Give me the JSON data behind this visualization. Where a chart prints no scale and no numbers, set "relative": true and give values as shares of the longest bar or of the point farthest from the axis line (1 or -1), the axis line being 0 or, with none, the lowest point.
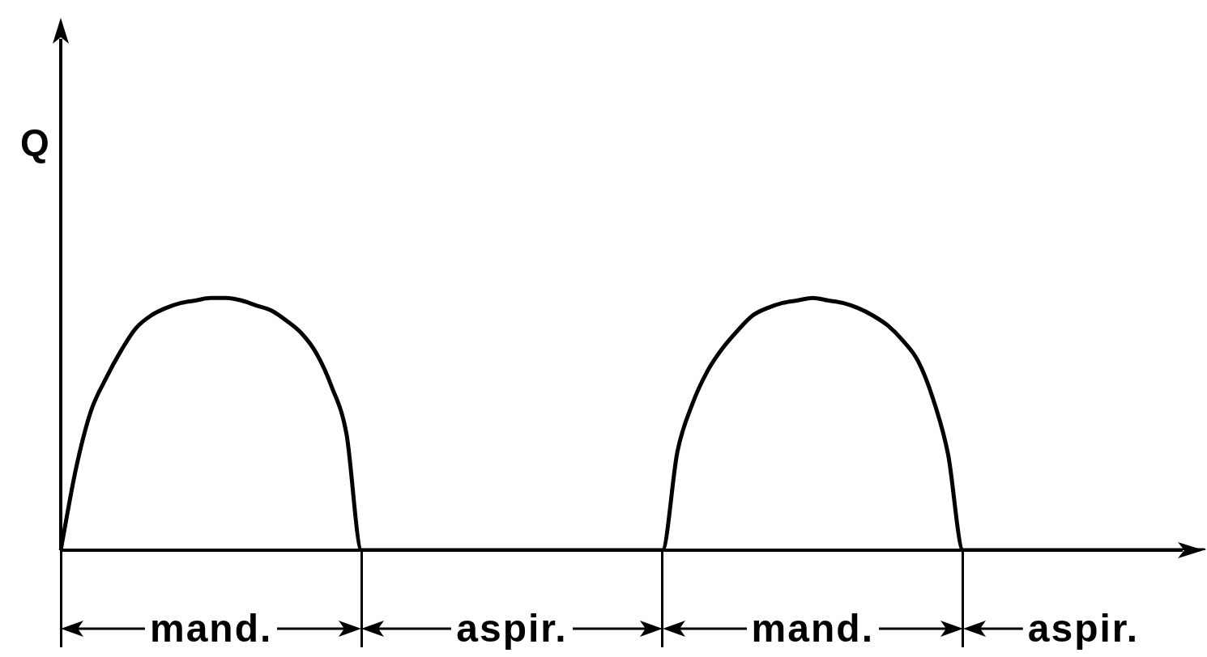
{
  "chart_data": {
    "type": "line",
    "ylabel": "Q",
    "relative": true,
    "marker": "none",
    "line_style": "solid",
    "categories": [
      null,
      null,
      null,
      null,
      null,
      null,
      null,
      null,
      null,
      null,
      null,
      null,
      null,
      null,
      null,
      null,
      null,
      null,
      null,
      null,
      null,
      null,
      null,
      null,
      null,
      null,
      null,
      null,
      null,
      null,
      null,
      null,
      null,
      null,
      null,
      null,
      null,
      null,
      null,
      null,
      null,
      null,
      null,
      null,
      null,
      null,
      null,
      null,
      null,
      null,
      null,
      null,
      null,
      null,
      null,
      null,
      null,
      null,
      null,
      null,
      null,
      null,
      null,
      null,
      null,
      null,
      null,
      null,
      null,
      null,
      null,
      null,
      null,
      null,
      null,
      null,
      null
    ],
    "series": [
      {
        "color": "#000000",
        "values": [
          0,
          0.32,
          0.55,
          0.68,
          0.79,
          0.88,
          0.93,
          0.96,
          0.98,
          0.99,
          1,
          1,
          0.99,
          0.97,
          0.95,
          0.91,
          0.86,
          0.78,
          0.65,
          0.46,
          0,
          0,
          0,
          0,
          0,
          0,
          0,
          0,
          0,
          0,
          0,
          0,
          0,
          0,
          0,
          0,
          0,
          0,
          0,
          0,
          0,
          0.39,
          0.58,
          0.71,
          0.8,
          0.87,
          0.93,
          0.96,
          0.98,
          0.99,
          1,
          0.99,
          0.98,
          0.96,
          0.93,
          0.89,
          0.83,
          0.75,
          0.6,
          0.38,
          0,
          0,
          0,
          0,
          0,
          0,
          0,
          0,
          0,
          0,
          0,
          0,
          0,
          0,
          0,
          0,
          0
        ]
      }
    ],
    "annotations": [
      "mand.",
      "aspir.",
      "mand.",
      "aspir."
    ]
  }
}
